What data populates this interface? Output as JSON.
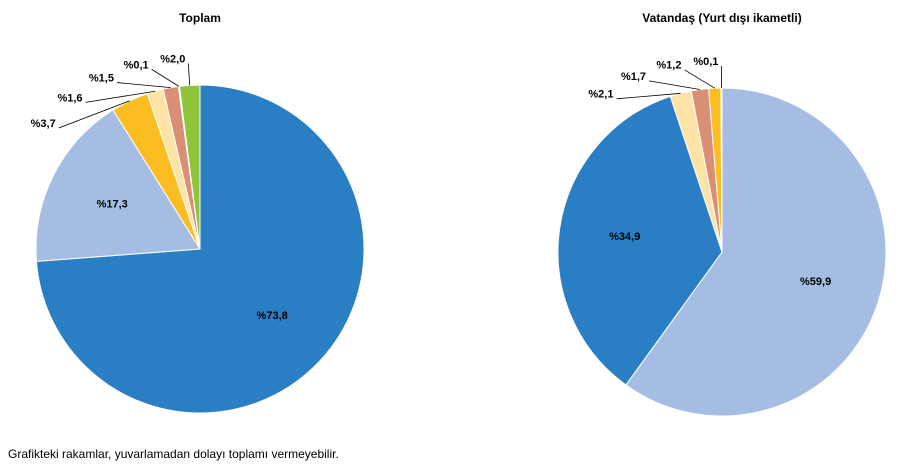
{
  "chart_data": [
    {
      "type": "pie",
      "title": "Toplam",
      "values": [
        73.8,
        17.3,
        3.7,
        1.6,
        1.5,
        0.1,
        2.0
      ],
      "value_labels": [
        "%73,8",
        "%17,3",
        "%3,7",
        "%1,6",
        "%1,5",
        "%0,1",
        "%2,0"
      ],
      "colors": [
        "#2a7fc4",
        "#a5bde3",
        "#fbbd22",
        "#fde3a6",
        "#d98f74",
        "#b03a2e",
        "#8fc43b"
      ]
    },
    {
      "type": "pie",
      "title": "Vatandaş (Yurt dışı ikametli)",
      "values": [
        59.9,
        34.9,
        2.1,
        1.7,
        1.2,
        0.1
      ],
      "value_labels": [
        "%59,9",
        "%34,9",
        "%2,1",
        "%1,7",
        "%1,2",
        "%0,1"
      ],
      "colors": [
        "#a5bde3",
        "#2a7fc4",
        "#fde3a6",
        "#d98f74",
        "#fbbd22",
        "#8fc43b"
      ]
    }
  ],
  "footnote": "Grafikteki rakamlar, yuvarlamadan dolayı toplamı vermeyebilir."
}
